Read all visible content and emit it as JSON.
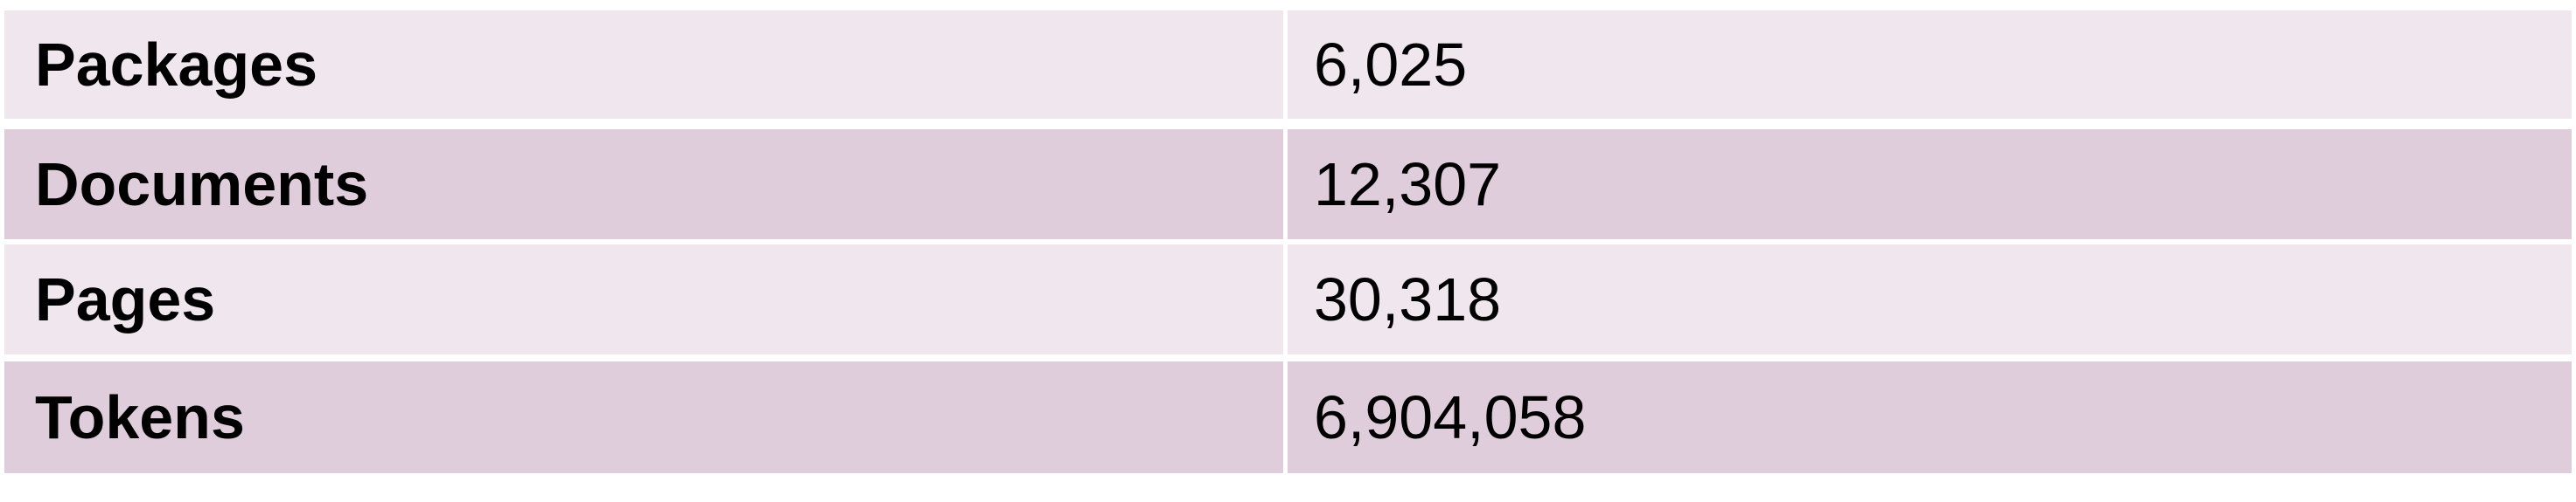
{
  "table": {
    "rows": [
      {
        "label": "Packages",
        "value": "6,025"
      },
      {
        "label": "Documents",
        "value": "12,307"
      },
      {
        "label": "Pages",
        "value": "30,318"
      },
      {
        "label": "Tokens",
        "value": "6,904,058"
      }
    ]
  },
  "colors": {
    "row_light": "#f0e6ee",
    "row_dark": "#dfcddc"
  }
}
